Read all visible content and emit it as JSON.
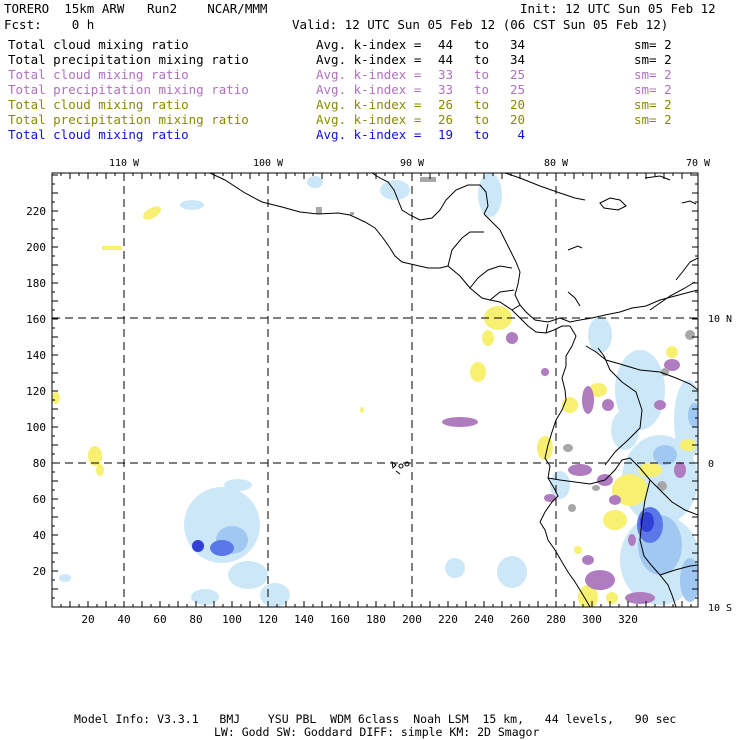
{
  "header": {
    "model": "TORERO  15km ARW   Run2    NCAR/MMM",
    "init": "Init: 12 UTC Sun 05 Feb 12",
    "fcst": "Fcst:    0 h",
    "valid": "Valid: 12 UTC Sun 05 Feb 12 (06 CST Sun 05 Feb 12)"
  },
  "legend": [
    {
      "name": "Total cloud mixing ratio",
      "avg": "Avg. k-index =",
      "lo": "44",
      "to": "to",
      "hi": "34",
      "sm": "sm= 2",
      "color": "#000000"
    },
    {
      "name": "Total precipitation mixing ratio",
      "avg": "Avg. k-index =",
      "lo": "44",
      "to": "to",
      "hi": "34",
      "sm": "sm= 2",
      "color": "#000000"
    },
    {
      "name": "Total cloud mixing ratio",
      "avg": "Avg. k-index =",
      "lo": "33",
      "to": "to",
      "hi": "25",
      "sm": "sm= 2",
      "color": "#b070c0"
    },
    {
      "name": "Total precipitation mixing ratio",
      "avg": "Avg. k-index =",
      "lo": "33",
      "to": "to",
      "hi": "25",
      "sm": "sm= 2",
      "color": "#b070c0"
    },
    {
      "name": "Total cloud mixing ratio",
      "avg": "Avg. k-index =",
      "lo": "26",
      "to": "to",
      "hi": "20",
      "sm": "sm= 2",
      "color": "#8a8a00"
    },
    {
      "name": "Total precipitation mixing ratio",
      "avg": "Avg. k-index =",
      "lo": "26",
      "to": "to",
      "hi": "20",
      "sm": "sm= 2",
      "color": "#8a8a00"
    },
    {
      "name": "Total cloud mixing ratio",
      "avg": "Avg. k-index =",
      "lo": "19",
      "to": "to",
      "hi": " 4",
      "sm": "",
      "color": "#1010e0"
    }
  ],
  "map": {
    "longitudes": [
      "110 W",
      "100 W",
      "90 W",
      "80 W",
      "70 W"
    ],
    "latitudes": [
      "10 N",
      "0",
      "10 S"
    ],
    "x_ticks": [
      "20",
      "40",
      "60",
      "80",
      "100",
      "120",
      "140",
      "160",
      "180",
      "200",
      "220",
      "240",
      "260",
      "280",
      "300",
      "320"
    ],
    "y_ticks": [
      "220",
      "200",
      "180",
      "160",
      "140",
      "120",
      "100",
      "80",
      "60",
      "40",
      "20"
    ],
    "colors": {
      "yellow": "#f8f070",
      "purple": "#b07cc0",
      "gray": "#a8a8a8",
      "lightblue": "#cce8f8",
      "midblue": "#a0c8f0",
      "blue": "#5a78e8",
      "darkblue": "#3040d8"
    }
  },
  "footer": {
    "line1": "Model Info: V3.3.1   BMJ    YSU PBL  WDM 6class  Noah LSM  15 km,   44 levels,   90 sec",
    "line2": "LW: Godd SW: Goddard DIFF: simple KM: 2D Smagor"
  }
}
